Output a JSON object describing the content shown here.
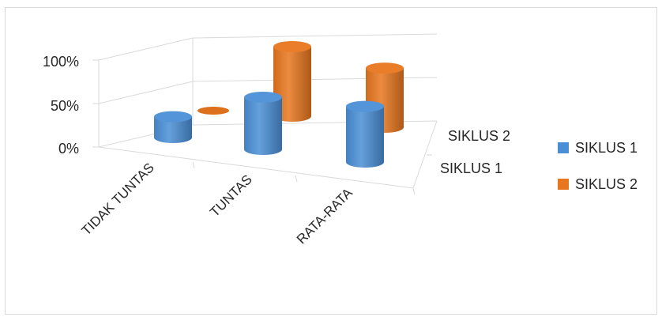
{
  "chart_data": {
    "type": "bar",
    "style": "3d-cylinder",
    "categories": [
      "TIDAK TUNTAS",
      "TUNTAS",
      "RATA-RATA"
    ],
    "series": [
      {
        "name": "SIKLUS 1",
        "color": "#4a8fd6",
        "values": [
          0.24,
          0.6,
          0.64
        ]
      },
      {
        "name": "SIKLUS 2",
        "color": "#e8761e",
        "values": [
          0.0,
          0.8,
          0.68
        ]
      }
    ],
    "depth_labels": [
      "SIKLUS 1",
      "SIKLUS 2"
    ],
    "y_ticks": [
      "0%",
      "50%",
      "100%"
    ],
    "ylim": [
      0,
      1
    ],
    "grid": true,
    "legend": {
      "position": "right",
      "items": [
        "SIKLUS 1",
        "SIKLUS 2"
      ]
    }
  }
}
